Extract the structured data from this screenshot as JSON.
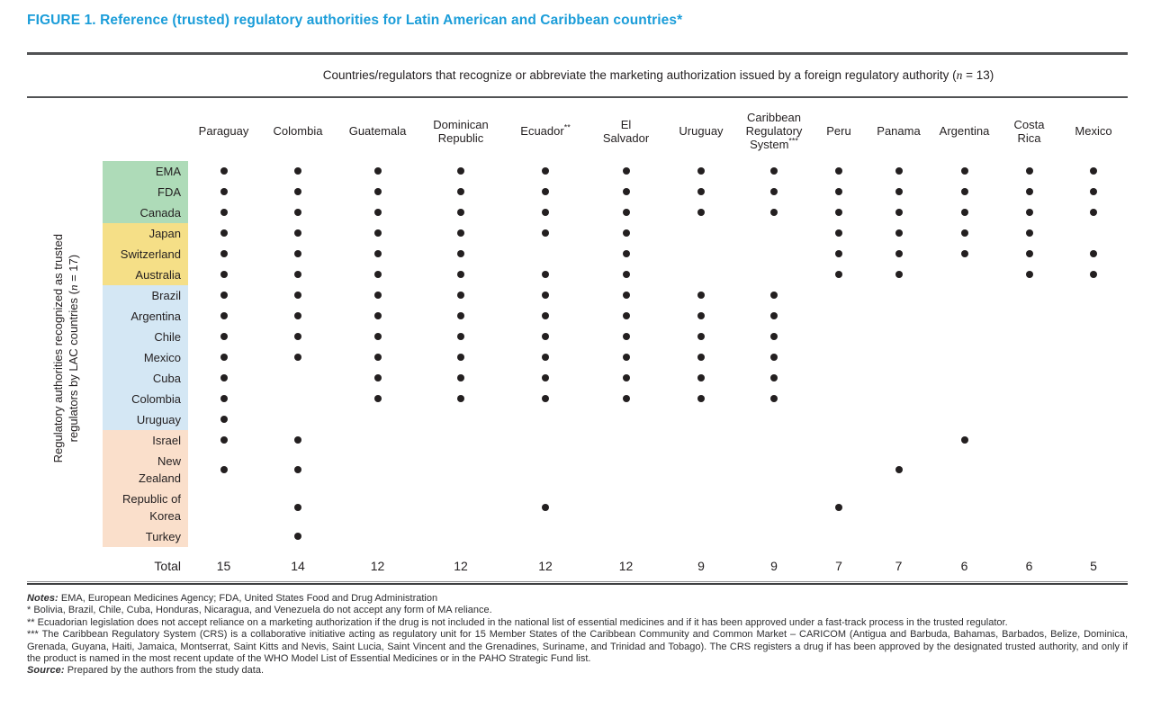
{
  "chart_data": {
    "type": "matrix",
    "title": "FIGURE 1. Reference (trusted) regulatory authorities for Latin American and Caribbean countries*",
    "column_axis_title": "Countries/regulators that recognize or abbreviate the marketing authorization issued by a foreign regulatory authority (n = 13)",
    "row_axis_title_lines": [
      "Regulatory authorities recognized as trusted",
      "regulators by LAC countries (n = 17)"
    ],
    "columns": [
      "Paraguay",
      "Colombia",
      "Guatemala",
      "Dominican\nRepublic",
      "Ecuador**",
      "El\nSalvador",
      "Uruguay",
      "Caribbean\nRegulatory\nSystem***",
      "Peru",
      "Panama",
      "Argentina",
      "Costa\nRica",
      "Mexico"
    ],
    "rows": [
      {
        "label": "EMA",
        "group": "green",
        "dots": [
          1,
          1,
          1,
          1,
          1,
          1,
          1,
          1,
          1,
          1,
          1,
          1,
          1
        ]
      },
      {
        "label": "FDA",
        "group": "green",
        "dots": [
          1,
          1,
          1,
          1,
          1,
          1,
          1,
          1,
          1,
          1,
          1,
          1,
          1
        ]
      },
      {
        "label": "Canada",
        "group": "green",
        "dots": [
          1,
          1,
          1,
          1,
          1,
          1,
          1,
          1,
          1,
          1,
          1,
          1,
          1
        ]
      },
      {
        "label": "Japan",
        "group": "yellow",
        "dots": [
          1,
          1,
          1,
          1,
          1,
          1,
          0,
          0,
          1,
          1,
          1,
          1,
          0
        ]
      },
      {
        "label": "Switzerland",
        "group": "yellow",
        "dots": [
          1,
          1,
          1,
          1,
          0,
          1,
          0,
          0,
          1,
          1,
          1,
          1,
          1
        ]
      },
      {
        "label": "Australia",
        "group": "yellow",
        "dots": [
          1,
          1,
          1,
          1,
          1,
          1,
          0,
          0,
          1,
          1,
          0,
          1,
          1
        ]
      },
      {
        "label": "Brazil",
        "group": "blue",
        "dots": [
          1,
          1,
          1,
          1,
          1,
          1,
          1,
          1,
          0,
          0,
          0,
          0,
          0
        ]
      },
      {
        "label": "Argentina",
        "group": "blue",
        "dots": [
          1,
          1,
          1,
          1,
          1,
          1,
          1,
          1,
          0,
          0,
          0,
          0,
          0
        ]
      },
      {
        "label": "Chile",
        "group": "blue",
        "dots": [
          1,
          1,
          1,
          1,
          1,
          1,
          1,
          1,
          0,
          0,
          0,
          0,
          0
        ]
      },
      {
        "label": "Mexico",
        "group": "blue",
        "dots": [
          1,
          1,
          1,
          1,
          1,
          1,
          1,
          1,
          0,
          0,
          0,
          0,
          0
        ]
      },
      {
        "label": "Cuba",
        "group": "blue",
        "dots": [
          1,
          0,
          1,
          1,
          1,
          1,
          1,
          1,
          0,
          0,
          0,
          0,
          0
        ]
      },
      {
        "label": "Colombia",
        "group": "blue",
        "dots": [
          1,
          0,
          1,
          1,
          1,
          1,
          1,
          1,
          0,
          0,
          0,
          0,
          0
        ]
      },
      {
        "label": "Uruguay",
        "group": "blue",
        "dots": [
          1,
          0,
          0,
          0,
          0,
          0,
          0,
          0,
          0,
          0,
          0,
          0,
          0
        ]
      },
      {
        "label": "Israel",
        "group": "peach",
        "dots": [
          1,
          1,
          0,
          0,
          0,
          0,
          0,
          0,
          0,
          0,
          1,
          0,
          0
        ]
      },
      {
        "label": "New\nZealand",
        "group": "peach",
        "dots": [
          1,
          1,
          0,
          0,
          0,
          0,
          0,
          0,
          0,
          1,
          0,
          0,
          0
        ]
      },
      {
        "label": "Republic of\nKorea",
        "group": "peach",
        "dots": [
          0,
          1,
          0,
          0,
          1,
          0,
          0,
          0,
          1,
          0,
          0,
          0,
          0
        ]
      },
      {
        "label": "Turkey",
        "group": "peach",
        "dots": [
          0,
          1,
          0,
          0,
          0,
          0,
          0,
          0,
          0,
          0,
          0,
          0,
          0
        ]
      }
    ],
    "total_row": {
      "label": "Total",
      "values": [
        15,
        14,
        12,
        12,
        12,
        12,
        9,
        9,
        7,
        7,
        6,
        6,
        5
      ]
    },
    "group_colors": {
      "green": "#aedbb8",
      "yellow": "#f5df87",
      "blue": "#d4e7f4",
      "peach": "#fadfcb"
    },
    "title_color": "#1b9dd9",
    "dot_color": "#231f20"
  },
  "notes": {
    "lines": [
      {
        "prefix": "Notes:",
        "text": " EMA, European Medicines Agency; FDA, United States Food and Drug Administration"
      },
      {
        "prefix": "",
        "text": "* Bolivia, Brazil, Chile, Cuba, Honduras, Nicaragua, and Venezuela do not accept any form of MA reliance."
      },
      {
        "prefix": "",
        "text": "** Ecuadorian legislation does not accept reliance on a marketing authorization if the drug is not included in the national list of essential medicines and if it has been approved under a fast-track process in the trusted regulator."
      },
      {
        "prefix": "",
        "text": "*** The Caribbean Regulatory System (CRS) is a collaborative initiative acting as regulatory unit for 15 Member States of the Caribbean Community and Common Market – CARICOM (Antigua and Barbuda, Bahamas, Barbados, Belize, Dominica, Grenada, Guyana, Haiti, Jamaica, Montserrat, Saint Kitts and Nevis, Saint Lucia, Saint Vincent and the Grenadines, Suriname, and Trinidad and Tobago). The CRS registers a drug if has been approved by the designated trusted authority, and only if the product is named in the most recent update of the WHO Model List of Essential Medicines or in the PAHO Strategic Fund list."
      },
      {
        "prefix": "Source:",
        "text": " Prepared by the authors from the study data."
      }
    ]
  }
}
